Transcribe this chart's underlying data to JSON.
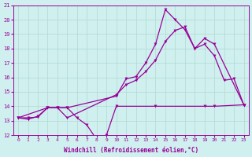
{
  "xlabel": "Windchill (Refroidissement éolien,°C)",
  "xlim": [
    -0.5,
    23.5
  ],
  "ylim": [
    12,
    21
  ],
  "xticks": [
    0,
    1,
    2,
    3,
    4,
    5,
    6,
    7,
    8,
    9,
    10,
    11,
    12,
    13,
    14,
    15,
    16,
    17,
    18,
    19,
    20,
    21,
    22,
    23
  ],
  "yticks": [
    12,
    13,
    14,
    15,
    16,
    17,
    18,
    19,
    20,
    21
  ],
  "bg_color": "#cff0ee",
  "grid_color": "#b0d8d0",
  "line_color": "#990099",
  "line1_x": [
    0,
    1,
    2,
    3,
    4,
    5,
    6,
    7,
    8,
    9,
    10,
    14,
    19,
    20,
    23
  ],
  "line1_y": [
    13.2,
    13.1,
    13.3,
    13.9,
    13.9,
    13.9,
    13.2,
    12.7,
    11.7,
    12.0,
    14.0,
    14.0,
    14.0,
    14.0,
    14.1
  ],
  "line2_x": [
    0,
    1,
    2,
    3,
    4,
    5,
    10,
    11,
    12,
    13,
    14,
    15,
    16,
    17,
    18,
    19,
    20,
    21,
    22,
    23
  ],
  "line2_y": [
    13.2,
    13.2,
    13.25,
    13.9,
    13.9,
    13.9,
    14.7,
    15.9,
    16.05,
    17.0,
    18.3,
    20.7,
    20.0,
    19.3,
    18.0,
    18.3,
    17.5,
    15.8,
    15.9,
    14.1
  ],
  "line3_x": [
    0,
    3,
    4,
    5,
    10,
    11,
    12,
    13,
    14,
    15,
    16,
    17,
    18,
    19,
    20,
    23
  ],
  "line3_y": [
    13.2,
    13.9,
    13.9,
    13.2,
    14.8,
    15.5,
    15.8,
    16.4,
    17.2,
    18.5,
    19.25,
    19.5,
    18.0,
    18.7,
    18.3,
    14.1
  ]
}
